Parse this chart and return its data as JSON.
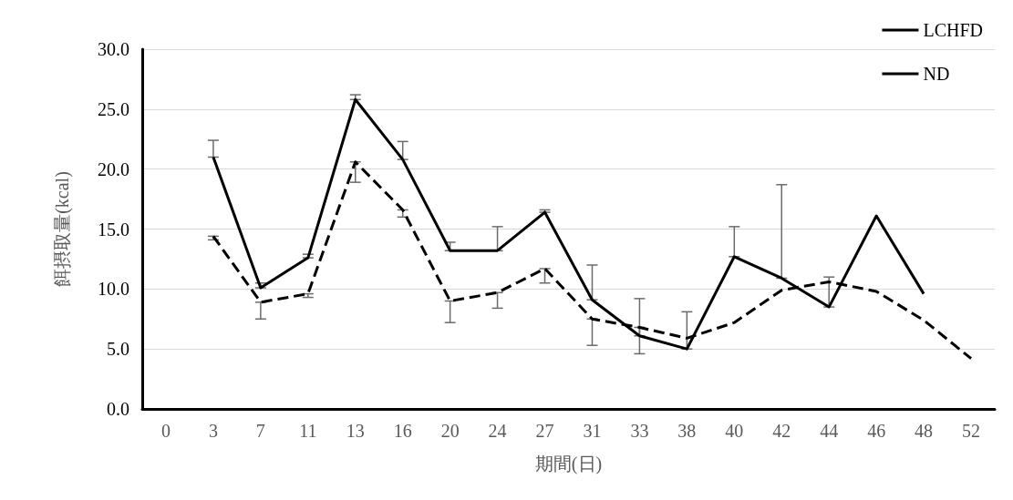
{
  "chart_data": {
    "type": "line",
    "xlabel": "期間(日)",
    "ylabel": "餌摂取量(kcal)",
    "categories": [
      "0",
      "3",
      "7",
      "11",
      "13",
      "16",
      "20",
      "24",
      "27",
      "31",
      "33",
      "38",
      "40",
      "42",
      "44",
      "46",
      "48",
      "52"
    ],
    "ylim": [
      0,
      30
    ],
    "yticks": [
      {
        "value": 0,
        "label": "0.0"
      },
      {
        "value": 5,
        "label": "5.0"
      },
      {
        "value": 10,
        "label": "10.0"
      },
      {
        "value": 15,
        "label": "15.0"
      },
      {
        "value": 20,
        "label": "20.0"
      },
      {
        "value": 25,
        "label": "25.0"
      },
      {
        "value": 30,
        "label": "30.0"
      }
    ],
    "grid": "y",
    "legend": "top right",
    "marker": "none",
    "series": [
      {
        "name": "LCHFD",
        "color": "#000000",
        "line_style": "solid",
        "values": [
          null,
          21.0,
          10.1,
          12.6,
          25.8,
          20.8,
          13.2,
          13.2,
          16.4,
          9.1,
          6.1,
          5.0,
          12.7,
          10.9,
          8.5,
          16.1,
          9.6,
          null
        ],
        "errors": [
          null,
          [
            21.0,
            22.4
          ],
          [
            10.1,
            10.5
          ],
          [
            12.6,
            12.9
          ],
          [
            25.8,
            26.2
          ],
          [
            20.8,
            22.3
          ],
          [
            13.2,
            13.9
          ],
          [
            13.2,
            15.2
          ],
          [
            16.4,
            16.6
          ],
          [
            9.1,
            12.0
          ],
          [
            6.1,
            9.2
          ],
          [
            5.0,
            8.1
          ],
          [
            12.7,
            15.2
          ],
          [
            10.9,
            18.7
          ],
          [
            8.5,
            11.0
          ],
          null,
          null,
          null
        ]
      },
      {
        "name": "ND",
        "color": "#000000",
        "line_style": "dashed",
        "values": [
          null,
          14.4,
          8.9,
          9.6,
          20.6,
          16.6,
          9.0,
          9.7,
          11.7,
          7.5,
          6.8,
          5.9,
          7.2,
          9.9,
          10.6,
          9.8,
          7.4,
          4.2
        ],
        "errors": [
          null,
          [
            14.1,
            14.4
          ],
          [
            7.5,
            8.9
          ],
          [
            9.3,
            9.6
          ],
          [
            18.9,
            20.6
          ],
          [
            16.0,
            16.6
          ],
          [
            7.2,
            9.0
          ],
          [
            8.4,
            9.7
          ],
          [
            10.5,
            11.7
          ],
          [
            5.3,
            7.5
          ],
          [
            4.6,
            6.8
          ],
          null,
          null,
          null,
          null,
          null,
          null,
          null
        ]
      }
    ]
  }
}
